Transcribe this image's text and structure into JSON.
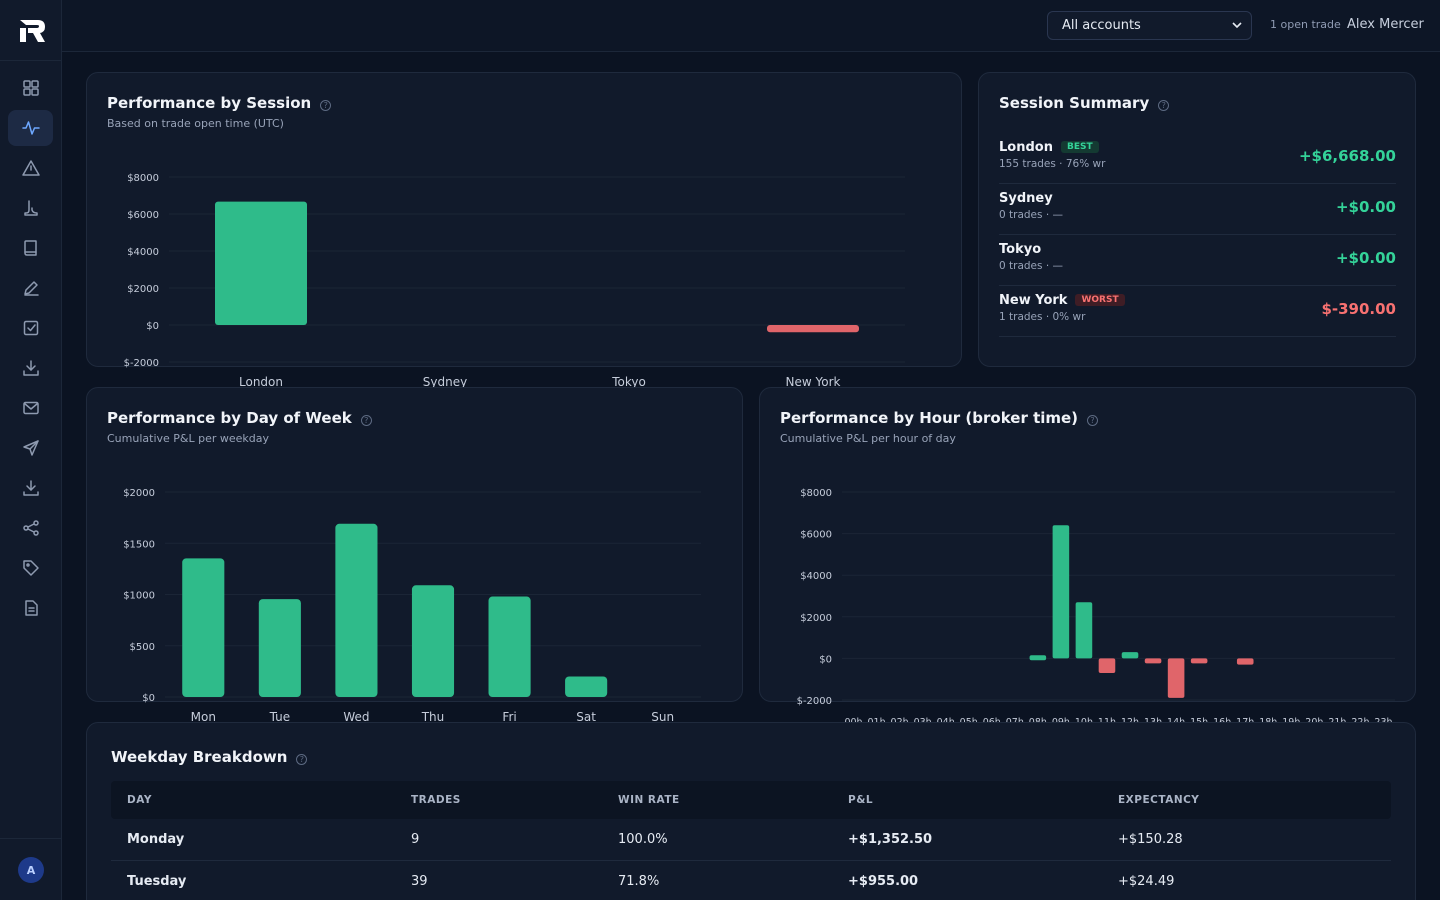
{
  "header": {
    "account_select": "All accounts",
    "open_trades": "1 open trade",
    "user_name": "Alex Mercer"
  },
  "sidebar": {
    "items": [
      {
        "icon": "grid-icon"
      },
      {
        "icon": "activity-icon",
        "active": true
      },
      {
        "icon": "warning-icon"
      },
      {
        "icon": "footprint-icon"
      },
      {
        "icon": "book-icon"
      },
      {
        "icon": "pencil-icon"
      },
      {
        "icon": "checklist-icon"
      },
      {
        "icon": "download-icon"
      },
      {
        "icon": "mail-icon"
      },
      {
        "icon": "send-icon"
      },
      {
        "icon": "import-icon"
      },
      {
        "icon": "share-icon"
      },
      {
        "icon": "tag-icon"
      },
      {
        "icon": "report-icon"
      }
    ],
    "avatar_initial": "A"
  },
  "session_card": {
    "title": "Performance by Session",
    "subtitle": "Based on trade open time (UTC)"
  },
  "summary_card": {
    "title": "Session Summary",
    "rows": [
      {
        "name": "London",
        "badge": "BEST",
        "meta": "155 trades · 76% wr",
        "value": "+$6,668.00"
      },
      {
        "name": "Sydney",
        "badge": "",
        "meta": "0 trades · —",
        "value": "+$0.00"
      },
      {
        "name": "Tokyo",
        "badge": "",
        "meta": "0 trades · —",
        "value": "+$0.00"
      },
      {
        "name": "New York",
        "badge": "WORST",
        "meta": "1 trades · 0% wr",
        "value": "$-390.00"
      }
    ]
  },
  "weekday_card": {
    "title": "Performance by Day of Week",
    "subtitle": "Cumulative P&L per weekday"
  },
  "hour_card": {
    "title": "Performance by Hour (broker time)",
    "subtitle": "Cumulative P&L per hour of day"
  },
  "breakdown_card": {
    "title": "Weekday Breakdown",
    "columns": [
      "DAY",
      "TRADES",
      "WIN RATE",
      "P&L",
      "EXPECTANCY"
    ],
    "rows": [
      {
        "day": "Monday",
        "trades": "9",
        "win_rate": "100.0%",
        "pnl": "+$1,352.50",
        "expectancy": "+$150.28"
      },
      {
        "day": "Tuesday",
        "trades": "39",
        "win_rate": "71.8%",
        "pnl": "+$955.00",
        "expectancy": "+$24.49"
      }
    ]
  },
  "colors": {
    "positive": "#2fbb8a",
    "negative": "#e0656a"
  },
  "chart_data": [
    {
      "type": "bar",
      "categories": [
        "London",
        "Sydney",
        "Tokyo",
        "New York"
      ],
      "values": [
        6668,
        0,
        0,
        -390
      ],
      "ylim": [
        -2000,
        8000
      ],
      "yticks": [
        "$8000",
        "$6000",
        "$4000",
        "$2000",
        "$0",
        "$-2000"
      ]
    },
    {
      "type": "bar",
      "categories": [
        "Mon",
        "Tue",
        "Wed",
        "Thu",
        "Fri",
        "Sat",
        "Sun"
      ],
      "values": [
        1352.5,
        955,
        1690,
        1090,
        980,
        200,
        0
      ],
      "ylim": [
        0,
        2000
      ],
      "yticks": [
        "$2000",
        "$1500",
        "$1000",
        "$500",
        "$0"
      ]
    },
    {
      "type": "bar",
      "categories": [
        "00h",
        "01h",
        "02h",
        "03h",
        "04h",
        "05h",
        "06h",
        "07h",
        "08h",
        "09h",
        "10h",
        "11h",
        "12h",
        "13h",
        "14h",
        "15h",
        "16h",
        "17h",
        "18h",
        "19h",
        "20h",
        "21h",
        "22h",
        "23h"
      ],
      "values": [
        0,
        0,
        0,
        0,
        0,
        0,
        0,
        0,
        150,
        6400,
        2700,
        -700,
        300,
        -200,
        -1900,
        -150,
        0,
        -300,
        0,
        0,
        0,
        0,
        0,
        0
      ],
      "ylim": [
        -2000,
        8000
      ],
      "yticks": [
        "$8000",
        "$6000",
        "$4000",
        "$2000",
        "$0",
        "$-2000"
      ]
    }
  ]
}
